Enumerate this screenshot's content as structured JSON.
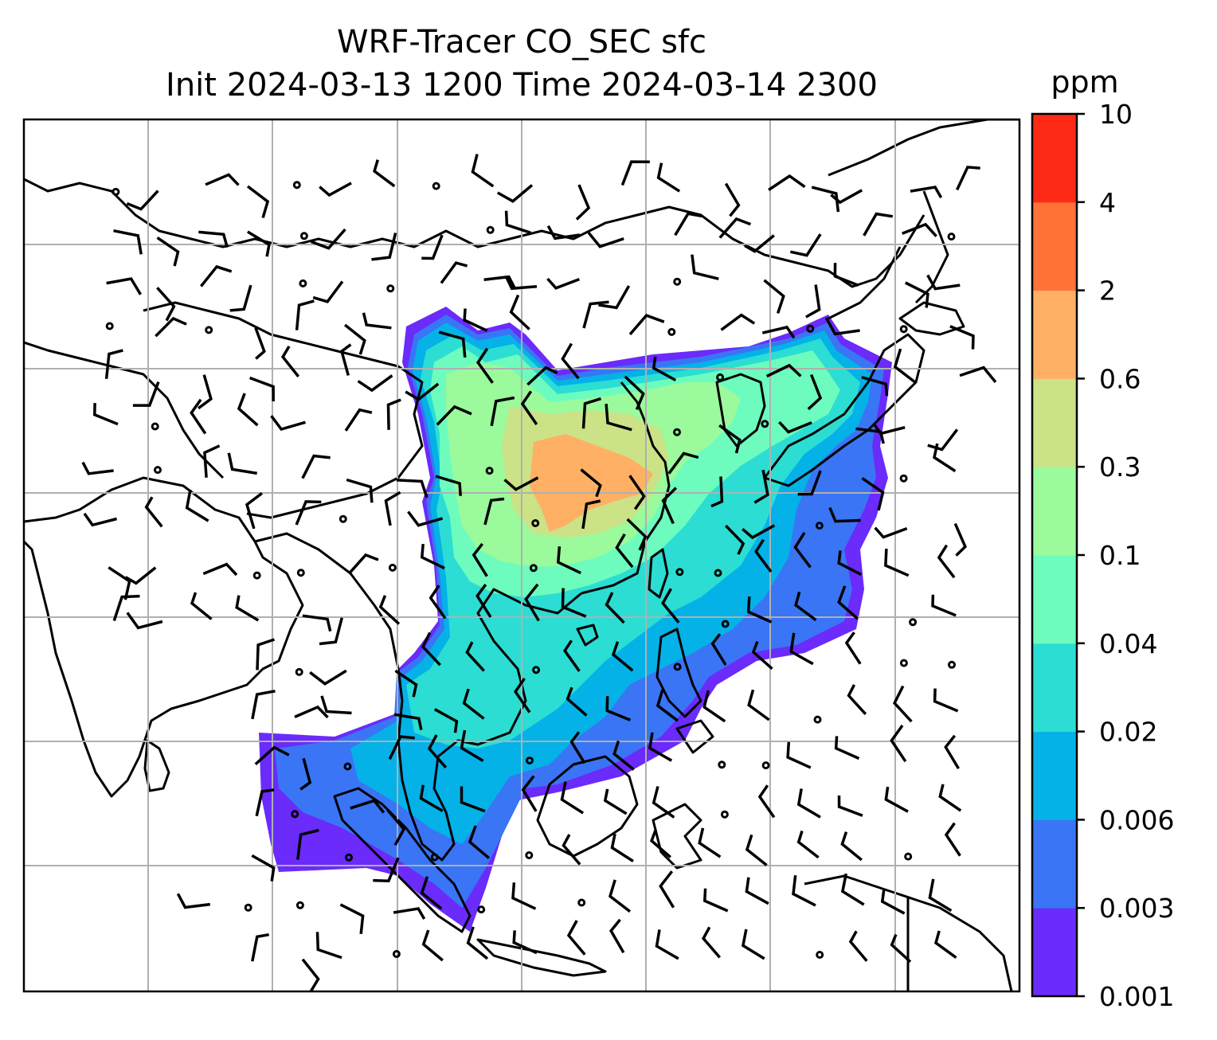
{
  "title_line1": "WRF-Tracer CO_SEC sfc",
  "title_line2": "Init 2024-03-13 1200 Time 2024-03-14 2300",
  "colorbar": {
    "unit": "ppm",
    "tick_labels": [
      "0.001",
      "0.003",
      "0.006",
      "0.02",
      "0.04",
      "0.1",
      "0.3",
      "0.6",
      "2",
      "4",
      "10"
    ],
    "colors": [
      "#6a2bfb",
      "#3975f5",
      "#04b2e8",
      "#2cddd3",
      "#6dfcbe",
      "#9bfa9c",
      "#cbe286",
      "#ffb065",
      "#ff7338",
      "#ff2a16"
    ]
  },
  "map": {
    "gridlines": true,
    "coastlines": true,
    "overlays": [
      "tracer-concentration-fill",
      "wind-barbs"
    ]
  }
}
